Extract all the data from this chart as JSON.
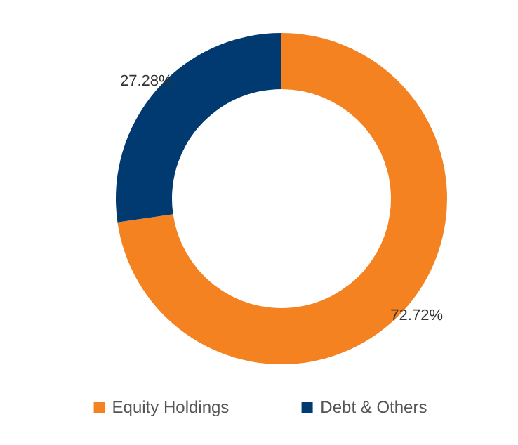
{
  "chart_data": {
    "type": "donut",
    "categories": [
      "Equity Holdings",
      "Debt & Others"
    ],
    "values": [
      72.72,
      27.28
    ],
    "colors": [
      "#f58220",
      "#003a70"
    ],
    "value_labels": [
      "72.72%",
      "27.28%"
    ],
    "legend": "bottom"
  }
}
